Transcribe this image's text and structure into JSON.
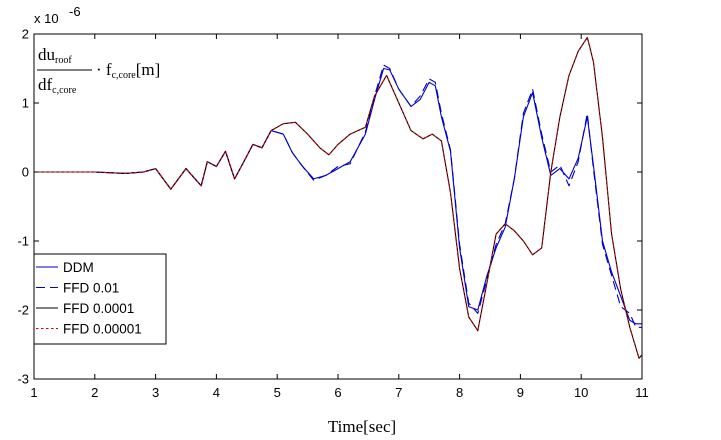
{
  "chart_data": {
    "type": "line",
    "title": "",
    "xlabel": "Time[sec]",
    "ylabel": "",
    "y_exponent_label": "x 10",
    "y_exponent_power": "-6",
    "annotation": {
      "num": "du",
      "num_sub": "roof",
      "den": "df",
      "den_sub": "c,core",
      "tail": "· f",
      "tail_sub": "c,core",
      "unit": "[m]"
    },
    "xlim": [
      1,
      11
    ],
    "ylim": [
      -3,
      2
    ],
    "xticks": [
      1,
      2,
      3,
      4,
      5,
      6,
      7,
      8,
      9,
      10,
      11
    ],
    "yticks": [
      -3,
      -2,
      -1,
      0,
      1,
      2
    ],
    "grid": false,
    "legend_position": "bottom-left",
    "series": [
      {
        "name": "DDM",
        "color": "#0000c8",
        "dash": "solid",
        "x": [
          1,
          1.5,
          2,
          2.5,
          2.8,
          3,
          3.25,
          3.5,
          3.75,
          3.85,
          4,
          4.15,
          4.3,
          4.45,
          4.6,
          4.75,
          4.9,
          5.1,
          5.25,
          5.4,
          5.6,
          5.8,
          6,
          6.2,
          6.45,
          6.6,
          6.75,
          6.85,
          7,
          7.2,
          7.35,
          7.5,
          7.6,
          7.7,
          7.85,
          8,
          8.15,
          8.3,
          8.45,
          8.6,
          8.75,
          8.9,
          9.05,
          9.2,
          9.35,
          9.5,
          9.65,
          9.8,
          9.95,
          10.1,
          10.2,
          10.35,
          10.5,
          10.65,
          10.8,
          10.9,
          11
        ],
        "y": [
          0,
          0,
          0,
          -0.02,
          0,
          0.05,
          -0.25,
          0.05,
          -0.2,
          0.15,
          0.08,
          0.3,
          -0.1,
          0.15,
          0.4,
          0.35,
          0.6,
          0.55,
          0.28,
          0.1,
          -0.1,
          -0.05,
          0.05,
          0.15,
          0.55,
          1.05,
          1.5,
          1.48,
          1.2,
          0.95,
          1.05,
          1.3,
          1.25,
          0.8,
          0.3,
          -1.1,
          -1.95,
          -2,
          -1.5,
          -1.1,
          -0.8,
          -0.1,
          0.8,
          1.15,
          0.5,
          -0.05,
          0.05,
          -0.1,
          0.2,
          0.8,
          0.1,
          -1,
          -1.45,
          -1.8,
          -2.15,
          -2.2,
          -2.2
        ]
      },
      {
        "name": "FFD 0.01",
        "color": "#0000c8",
        "dash": "dashed",
        "x": [
          1,
          1.5,
          2,
          2.5,
          2.8,
          3,
          3.25,
          3.5,
          3.75,
          3.85,
          4,
          4.15,
          4.3,
          4.45,
          4.6,
          4.75,
          4.9,
          5.1,
          5.25,
          5.4,
          5.6,
          5.8,
          6,
          6.2,
          6.45,
          6.6,
          6.75,
          6.85,
          7,
          7.2,
          7.35,
          7.5,
          7.6,
          7.7,
          7.85,
          8,
          8.15,
          8.3,
          8.45,
          8.6,
          8.75,
          8.9,
          9.05,
          9.2,
          9.35,
          9.5,
          9.65,
          9.8,
          9.95,
          10.1,
          10.2,
          10.35,
          10.5,
          10.65,
          10.8,
          10.9,
          11
        ],
        "y": [
          0,
          0,
          0,
          -0.02,
          0,
          0.05,
          -0.25,
          0.05,
          -0.2,
          0.15,
          0.08,
          0.3,
          -0.1,
          0.15,
          0.4,
          0.35,
          0.6,
          0.55,
          0.28,
          0.1,
          -0.12,
          -0.05,
          0.08,
          0.12,
          0.58,
          1.1,
          1.55,
          1.5,
          1.2,
          0.95,
          1.1,
          1.35,
          1.3,
          0.85,
          0.32,
          -1.05,
          -1.9,
          -2.05,
          -1.55,
          -1.05,
          -0.75,
          -0.1,
          0.85,
          1.2,
          0.55,
          0,
          0.1,
          -0.2,
          0.15,
          0.85,
          0.05,
          -1.05,
          -1.5,
          -1.95,
          -2.05,
          -2.25,
          -2.25
        ]
      },
      {
        "name": "FFD 0.0001",
        "color": "#000000",
        "dash": "solid",
        "x": [
          1,
          1.5,
          2,
          2.5,
          2.8,
          3,
          3.25,
          3.5,
          3.75,
          3.85,
          4,
          4.15,
          4.3,
          4.45,
          4.6,
          4.75,
          4.9,
          5.1,
          5.3,
          5.5,
          5.7,
          5.85,
          6,
          6.2,
          6.45,
          6.6,
          6.8,
          7,
          7.2,
          7.4,
          7.55,
          7.7,
          7.85,
          8,
          8.15,
          8.3,
          8.45,
          8.6,
          8.75,
          8.9,
          9.05,
          9.2,
          9.35,
          9.5,
          9.65,
          9.8,
          9.95,
          10.1,
          10.2,
          10.35,
          10.5,
          10.65,
          10.8,
          10.95,
          11
        ],
        "y": [
          0,
          0,
          0,
          -0.02,
          0,
          0.05,
          -0.25,
          0.05,
          -0.2,
          0.15,
          0.08,
          0.3,
          -0.1,
          0.15,
          0.4,
          0.35,
          0.6,
          0.7,
          0.72,
          0.55,
          0.35,
          0.25,
          0.4,
          0.55,
          0.65,
          1.1,
          1.4,
          1.0,
          0.6,
          0.48,
          0.55,
          0.45,
          -0.3,
          -1.4,
          -2.1,
          -2.3,
          -1.6,
          -0.9,
          -0.75,
          -0.85,
          -1.0,
          -1.2,
          -1.1,
          0,
          0.8,
          1.4,
          1.75,
          1.95,
          1.6,
          0.5,
          -0.9,
          -1.7,
          -2.25,
          -2.7,
          -2.65
        ]
      },
      {
        "name": "FFD 0.00001",
        "color": "#e00000",
        "dash": "dotted",
        "x": [
          1,
          1.5,
          2,
          2.5,
          2.8,
          3,
          3.25,
          3.5,
          3.75,
          3.85,
          4,
          4.15,
          4.3,
          4.45,
          4.6,
          4.75,
          4.9,
          5.1,
          5.3,
          5.5,
          5.7,
          5.85,
          6,
          6.2,
          6.45,
          6.6,
          6.8,
          7,
          7.2,
          7.4,
          7.55,
          7.7,
          7.85,
          8,
          8.15,
          8.3,
          8.45,
          8.6,
          8.75,
          8.9,
          9.05,
          9.2,
          9.35,
          9.5,
          9.65,
          9.8,
          9.95,
          10.1,
          10.2,
          10.35,
          10.5,
          10.65,
          10.8,
          10.95,
          11
        ],
        "y": [
          0,
          0,
          0,
          -0.02,
          0,
          0.05,
          -0.25,
          0.05,
          -0.2,
          0.15,
          0.08,
          0.3,
          -0.1,
          0.15,
          0.4,
          0.35,
          0.6,
          0.7,
          0.72,
          0.55,
          0.35,
          0.25,
          0.4,
          0.55,
          0.65,
          1.1,
          1.4,
          1.0,
          0.6,
          0.48,
          0.55,
          0.45,
          -0.3,
          -1.4,
          -2.1,
          -2.3,
          -1.6,
          -0.9,
          -0.75,
          -0.85,
          -1.0,
          -1.2,
          -1.1,
          0,
          0.8,
          1.4,
          1.75,
          1.95,
          1.6,
          0.5,
          -0.9,
          -1.7,
          -2.25,
          -2.7,
          -2.65
        ]
      }
    ]
  }
}
